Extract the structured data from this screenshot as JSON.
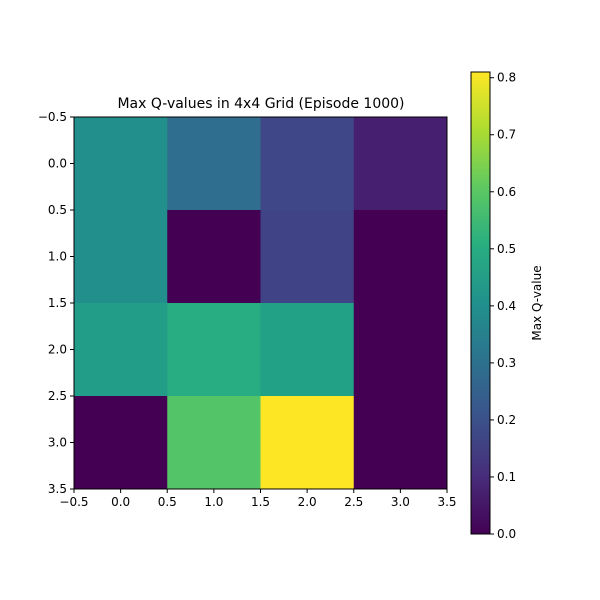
{
  "chart_data": {
    "type": "heatmap",
    "title": "Max Q-values in 4x4 Grid (Episode 1000)",
    "xlabel": "",
    "ylabel": "",
    "rows": 4,
    "cols": 4,
    "values": [
      [
        0.4,
        0.29,
        0.17,
        0.07
      ],
      [
        0.4,
        0.0,
        0.16,
        0.0
      ],
      [
        0.45,
        0.5,
        0.46,
        0.0
      ],
      [
        0.0,
        0.59,
        0.81,
        0.0
      ]
    ],
    "x_ticks": [
      -0.5,
      0.0,
      0.5,
      1.0,
      1.5,
      2.0,
      2.5,
      3.0,
      3.5
    ],
    "y_ticks": [
      -0.5,
      0.0,
      0.5,
      1.0,
      1.5,
      2.0,
      2.5,
      3.0,
      3.5
    ],
    "x_tick_labels": [
      "−0.5",
      "0.0",
      "0.5",
      "1.0",
      "1.5",
      "2.0",
      "2.5",
      "3.0",
      "3.5"
    ],
    "y_tick_labels": [
      "−0.5",
      "0.0",
      "0.5",
      "1.0",
      "1.5",
      "2.0",
      "2.5",
      "3.0",
      "3.5"
    ],
    "xlim": [
      -0.5,
      3.5
    ],
    "ylim": [
      3.5,
      -0.5
    ],
    "colorbar": {
      "label": "Max Q-value",
      "min": 0.0,
      "max": 0.81,
      "ticks": [
        0.0,
        0.1,
        0.2,
        0.3,
        0.4,
        0.5,
        0.6,
        0.7,
        0.8
      ],
      "tick_labels": [
        "0.0",
        "0.1",
        "0.2",
        "0.3",
        "0.4",
        "0.5",
        "0.6",
        "0.7",
        "0.8"
      ],
      "colormap": "viridis"
    },
    "grid": false
  }
}
